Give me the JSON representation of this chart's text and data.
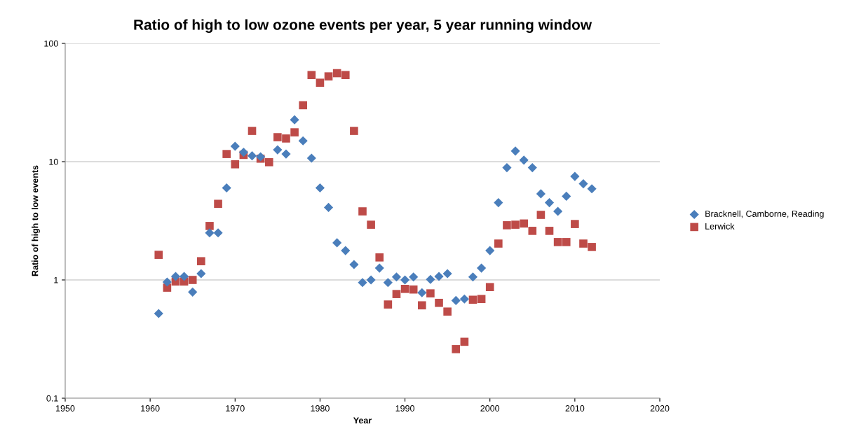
{
  "chart_data": {
    "type": "scatter",
    "title": "Ratio of high to low ozone events per year, 5 year running window",
    "xlabel": "Year",
    "ylabel": "Ratio of high to low events",
    "x": [
      1961,
      1962,
      1963,
      1964,
      1965,
      1966,
      1967,
      1968,
      1969,
      1970,
      1971,
      1972,
      1973,
      1974,
      1975,
      1976,
      1977,
      1978,
      1979,
      1980,
      1981,
      1982,
      1983,
      1984,
      1985,
      1986,
      1987,
      1988,
      1989,
      1990,
      1991,
      1992,
      1993,
      1994,
      1995,
      1996,
      1997,
      1998,
      1999,
      2000,
      2001,
      2002,
      2003,
      2004,
      2005,
      2006,
      2007,
      2008,
      2009,
      2010,
      2011,
      2012
    ],
    "series": [
      {
        "name": "Bracknell, Camborne, Reading",
        "color": "#4a7ebb",
        "marker": "diamond",
        "x": [
          1961,
          1962,
          1963,
          1964,
          1965,
          1966,
          1967,
          1968,
          1969,
          1970,
          1971,
          1972,
          1973,
          1975,
          1976,
          1977,
          1978,
          1979,
          1980,
          1981,
          1982,
          1983,
          1984,
          1985,
          1986,
          1987,
          1988,
          1989,
          1990,
          1991,
          1992,
          1993,
          1994,
          1995,
          1996,
          1997,
          1998,
          1999,
          2000,
          2001,
          2002,
          2003,
          2004,
          2005,
          2006,
          2007,
          2008,
          2009,
          2010,
          2011,
          2012
        ],
        "values": [
          0.52,
          0.96,
          1.07,
          1.07,
          0.79,
          1.13,
          2.5,
          2.5,
          6.0,
          13.5,
          12,
          11.2,
          11,
          12.6,
          11.6,
          22.6,
          15,
          10.7,
          6.0,
          4.1,
          2.06,
          1.77,
          1.35,
          0.95,
          1.0,
          1.26,
          0.95,
          1.06,
          1.0,
          1.06,
          0.78,
          1.01,
          1.07,
          1.13,
          0.67,
          0.69,
          1.06,
          1.26,
          1.77,
          4.5,
          8.9,
          12.3,
          10.3,
          8.9,
          5.35,
          4.5,
          3.8,
          5.1,
          7.5,
          6.5,
          5.9
        ]
      },
      {
        "name": "Lerwick",
        "color": "#be4b48",
        "marker": "square",
        "values": [
          1.63,
          0.86,
          0.97,
          0.97,
          1.0,
          1.44,
          2.86,
          4.4,
          11.6,
          9.5,
          11.4,
          18.2,
          10.6,
          9.9,
          16.1,
          15.7,
          17.7,
          30,
          54,
          46.5,
          52.6,
          56,
          54,
          18.2,
          3.8,
          2.93,
          1.55,
          0.62,
          0.76,
          0.84,
          0.83,
          0.61,
          0.77,
          0.64,
          0.54,
          0.26,
          0.3,
          0.68,
          0.69,
          0.87,
          2.03,
          2.9,
          2.93,
          3.0,
          2.6,
          3.55,
          2.6,
          2.09,
          2.09,
          2.97,
          2.03,
          1.9
        ]
      }
    ],
    "log": "y",
    "xlim": [
      1950,
      2020
    ],
    "xticks": [
      1950,
      1960,
      1970,
      1980,
      1990,
      2000,
      2010,
      2020
    ],
    "ylim": [
      0.1,
      100
    ],
    "yticks": [
      0.1,
      1,
      10,
      100
    ],
    "grid": "y",
    "legend": "right"
  }
}
